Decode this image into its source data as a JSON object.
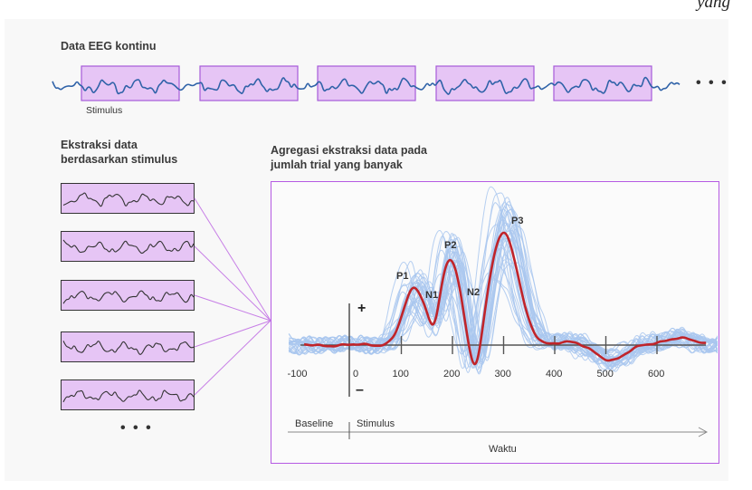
{
  "header": {
    "corner_text": "yang"
  },
  "top": {
    "title": "Data EEG kontinu",
    "stimulus_label": "Stimulus",
    "ellipsis": "• • •"
  },
  "left": {
    "title_line1": "Ekstraksi data",
    "title_line2": "berdasarkan stimulus",
    "ellipsis": "• • •"
  },
  "right": {
    "title_line1": "Agregasi ekstraksi data pada",
    "title_line2": "jumlah trial yang banyak"
  },
  "erp": {
    "x_ticks": [
      "-100",
      "0",
      "100",
      "200",
      "300",
      "400",
      "500",
      "600"
    ],
    "y_plus": "+",
    "y_minus": "–",
    "peaks": {
      "p1": "P1",
      "n1": "N1",
      "p2": "P2",
      "n2": "N2",
      "p3": "P3"
    },
    "timeline": {
      "baseline": "Baseline",
      "stimulus": "Stimulus",
      "axis": "Waktu"
    }
  },
  "colors": {
    "highlight_fill": "#e6c5f5",
    "highlight_border": "#a65bd9",
    "eeg_line": "#2f62a8",
    "trial_lines": "#a9c7ee",
    "average_line": "#c0242a",
    "frame_border": "#b55ae3"
  }
}
